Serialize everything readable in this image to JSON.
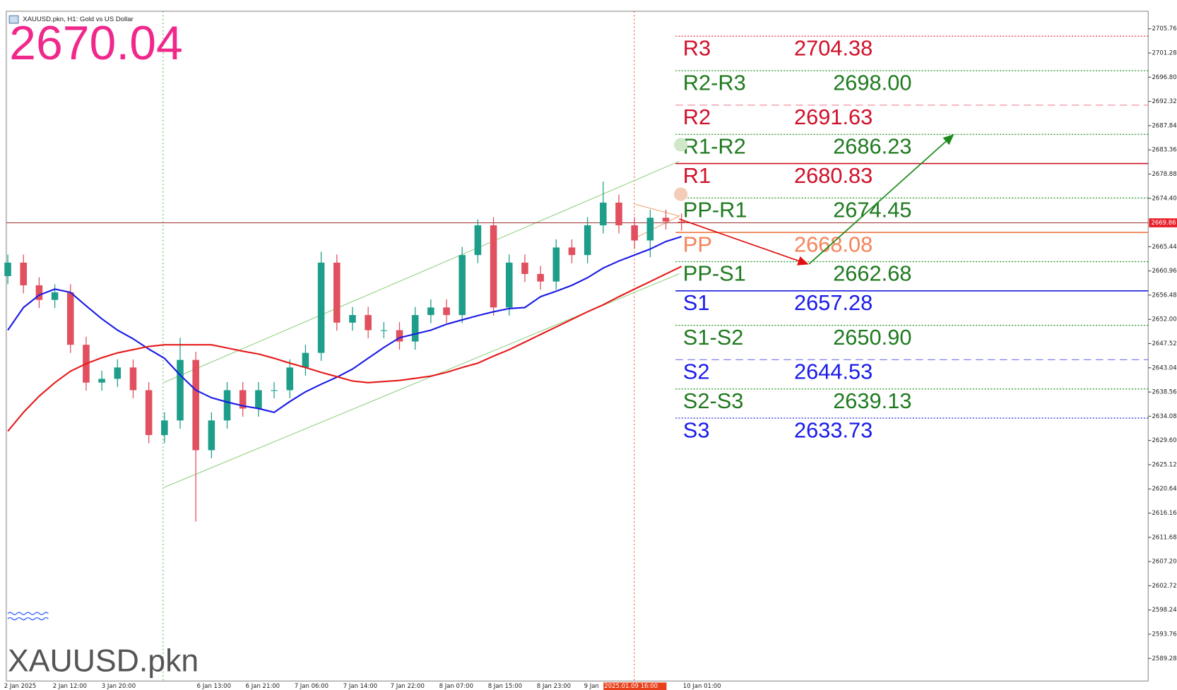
{
  "chart_data": {
    "type": "candlestick",
    "title": "XAUUSD.pkn, H1: Gold vs US Dollar",
    "price_display": "2670.04",
    "symbol": "XAUUSD.pkn",
    "current_price": 2669.86,
    "ylim": [
      2585.1,
      2709.0
    ],
    "yticks": [
      2705.76,
      2701.28,
      {
        "value": 2696.8,
        "label": "2696.80"
      },
      2692.32,
      2687.84,
      2683.36,
      2678.88,
      {
        "value": 2674.4,
        "label": "2674.40"
      },
      2665.44,
      2660.96,
      2656.48,
      {
        "value": 2652.0,
        "label": "2652.00"
      },
      2647.52,
      2643.04,
      2638.56,
      2634.08,
      {
        "value": 2629.6,
        "label": "2629.60"
      },
      2625.12,
      2620.64,
      2616.16,
      2611.68,
      {
        "value": 2607.2,
        "label": "2607.20"
      },
      2602.72,
      2598.24,
      2593.76,
      2589.28
    ],
    "xtick_labels": [
      "2 Jan 2025",
      "2 Jan 12:00",
      "3 Jan 20:00",
      "6 Jan 13:00",
      "6 Jan 21:00",
      "7 Jan 06:00",
      "7 Jan 14:00",
      "7 Jan 22:00",
      "8 Jan 07:00",
      "8 Jan 15:00",
      "8 Jan 23:00",
      "9 Jan",
      "2025.01.09 16:00",
      "10 Jan 01:00"
    ],
    "up_color": "#1e9e8a",
    "down_color": "#e0505e",
    "open": [
      2660.0,
      2662.5,
      2658.3,
      2655.6,
      2657.0,
      2647.3,
      2640.3,
      2641.0,
      2643.1,
      2638.9,
      2630.6,
      2633.3,
      2644.5,
      2627.8,
      2633.3,
      2638.9,
      2635.5,
      2638.9,
      2638.9,
      2643.1,
      2645.8,
      2662.5,
      2651.4,
      2652.8,
      2650.0,
      2650.0,
      2647.9,
      2652.8,
      2654.2,
      2652.8,
      2663.9,
      2669.4,
      2654.2,
      2662.5,
      2660.4,
      2659.0,
      2665.3,
      2663.9,
      2669.4,
      2673.6,
      2669.4,
      2666.6,
      2670.8,
      2670.1
    ],
    "high": [
      2664.0,
      2664.0,
      2659.8,
      2658.5,
      2658.5,
      2648.8,
      2642.5,
      2644.6,
      2644.6,
      2640.4,
      2634.8,
      2648.6,
      2646.0,
      2634.8,
      2640.4,
      2640.4,
      2640.4,
      2640.4,
      2644.6,
      2647.3,
      2664.5,
      2664.0,
      2654.3,
      2654.3,
      2651.5,
      2651.5,
      2654.3,
      2655.7,
      2655.7,
      2665.4,
      2670.5,
      2670.9,
      2664.0,
      2664.0,
      2661.9,
      2666.8,
      2666.8,
      2670.9,
      2677.5,
      2675.1,
      2670.9,
      2672.3,
      2672.3,
      2671.6
    ],
    "low": [
      2658.5,
      2656.8,
      2654.1,
      2654.1,
      2645.8,
      2638.8,
      2638.8,
      2639.5,
      2637.4,
      2629.1,
      2629.1,
      2631.8,
      2614.6,
      2626.3,
      2631.8,
      2634.0,
      2634.0,
      2637.4,
      2637.4,
      2641.6,
      2644.3,
      2649.9,
      2649.9,
      2648.5,
      2648.5,
      2646.4,
      2646.4,
      2651.3,
      2651.3,
      2651.3,
      2662.4,
      2652.7,
      2652.7,
      2658.9,
      2657.5,
      2657.5,
      2662.4,
      2662.4,
      2667.9,
      2667.9,
      2665.1,
      2663.5,
      2668.6,
      2668.4
    ],
    "close": [
      2662.5,
      2658.3,
      2655.6,
      2657.0,
      2647.3,
      2640.3,
      2641.0,
      2643.1,
      2638.9,
      2630.6,
      2633.3,
      2644.5,
      2627.8,
      2633.3,
      2638.9,
      2635.5,
      2638.9,
      2638.9,
      2643.1,
      2645.8,
      2662.5,
      2651.4,
      2652.8,
      2650.0,
      2650.0,
      2647.9,
      2652.8,
      2654.2,
      2652.8,
      2663.9,
      2669.4,
      2654.2,
      2662.5,
      2660.4,
      2659.0,
      2665.3,
      2663.9,
      2669.4,
      2673.6,
      2669.4,
      2666.6,
      2670.8,
      2670.1,
      2669.9
    ],
    "series": [
      {
        "color": "#1a1ae6",
        "values": [
          2650.0,
          2654.2,
          2656.5,
          2657.6,
          2657.0,
          2654.5,
          2652.1,
          2650.0,
          2648.4,
          2646.5,
          2644.8,
          2641.7,
          2638.9,
          2637.5,
          2636.7,
          2636.0,
          2635.5,
          2634.8,
          2636.8,
          2638.6,
          2640.0,
          2641.3,
          2642.8,
          2644.8,
          2646.8,
          2648.6,
          2649.3,
          2650.0,
          2651.1,
          2651.9,
          2652.7,
          2653.4,
          2654.0,
          2654.2,
          2656.2,
          2657.2,
          2658.3,
          2659.7,
          2661.5,
          2662.8,
          2663.9,
          2665.0,
          2666.4,
          2667.3
        ]
      },
      {
        "color": "#e61a1a",
        "values": [
          2631.3,
          2634.8,
          2637.8,
          2640.3,
          2642.4,
          2643.8,
          2644.9,
          2645.8,
          2646.4,
          2647.0,
          2647.3,
          2647.3,
          2647.3,
          2647.3,
          2646.7,
          2646.1,
          2645.6,
          2644.8,
          2643.9,
          2643.1,
          2642.2,
          2641.4,
          2640.6,
          2640.3,
          2640.5,
          2640.7,
          2641.1,
          2641.5,
          2642.2,
          2643.1,
          2643.9,
          2645.2,
          2646.4,
          2647.8,
          2649.2,
          2650.6,
          2652.0,
          2653.4,
          2654.7,
          2656.2,
          2657.6,
          2659.0,
          2660.4,
          2661.8
        ]
      }
    ],
    "levels": [
      {
        "name": "R3",
        "value": 2704.38,
        "color": "#d0102a",
        "line_color": "#e04050",
        "line": "dotted"
      },
      {
        "name": "R2-R3",
        "value": 2698.0,
        "label": "2698.00",
        "color": "#1f7a1f",
        "line_color": "#2a9a2a",
        "line": "dotted"
      },
      {
        "name": "R2",
        "value": 2691.63,
        "color": "#d0102a",
        "line_color": "#f090a0",
        "line": "dashed"
      },
      {
        "name": "R1-R2",
        "value": 2686.23,
        "color": "#1f7a1f",
        "line_color": "#2a9a2a",
        "line": "dotted"
      },
      {
        "name": "R1",
        "value": 2680.83,
        "color": "#d0102a",
        "line_color": "#d01020",
        "line": "solid"
      },
      {
        "name": "PP-R1",
        "value": 2674.45,
        "color": "#1f7a1f",
        "line_color": "#2a9a2a",
        "line": "dotted"
      },
      {
        "name": "PP",
        "value": 2668.08,
        "color": "#f4835a",
        "line_color": "#f08050",
        "line": "solid"
      },
      {
        "name": "PP-S1",
        "value": 2662.68,
        "color": "#1f7a1f",
        "line_color": "#2a9a2a",
        "line": "dotted"
      },
      {
        "name": "S1",
        "value": 2657.28,
        "color": "#1a1aeb",
        "line_color": "#1a1ae0",
        "line": "solid"
      },
      {
        "name": "S1-S2",
        "value": 2650.9,
        "label": "2650.90",
        "color": "#1f7a1f",
        "line_color": "#2a9a2a",
        "line": "dotted"
      },
      {
        "name": "S2",
        "value": 2644.53,
        "color": "#1a1aeb",
        "line_color": "#8080f0",
        "line": "dashed"
      },
      {
        "name": "S2-S3",
        "value": 2639.13,
        "color": "#1f7a1f",
        "line_color": "#2a9a2a",
        "line": "dotted"
      },
      {
        "name": "S3",
        "value": 2633.73,
        "color": "#1a1aeb",
        "line_color": "#3030e0",
        "line": "dotted"
      }
    ]
  }
}
